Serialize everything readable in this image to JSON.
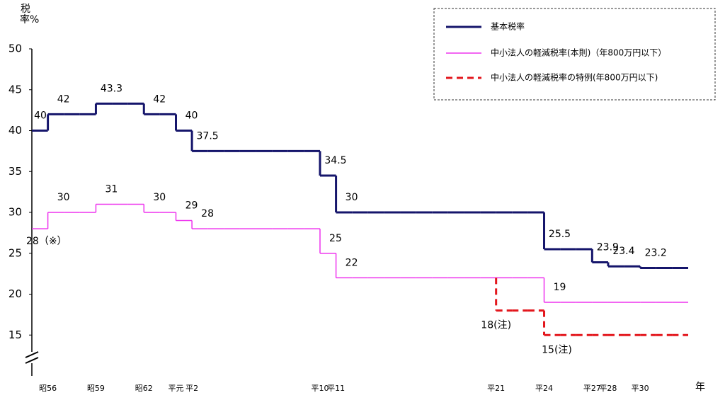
{
  "chart_data": {
    "type": "step",
    "y_label": "税率%",
    "x_label": "年",
    "categories": [
      null,
      "昭56",
      null,
      null,
      "昭59",
      null,
      null,
      "昭62",
      null,
      "平元",
      "平2",
      null,
      null,
      null,
      null,
      null,
      null,
      null,
      "平10",
      "平11",
      null,
      null,
      null,
      null,
      null,
      null,
      null,
      null,
      null,
      "平21",
      null,
      null,
      "平24",
      null,
      null,
      "平27",
      "平28",
      null,
      "平30",
      null,
      null
    ],
    "ylim": [
      10,
      50
    ],
    "yticks": [
      15,
      20,
      25,
      30,
      35,
      40,
      45,
      50
    ],
    "series": [
      {
        "name": "基本税率",
        "color": "#15156b",
        "dashed": false,
        "values": [
          40,
          42,
          42,
          42,
          43.3,
          43.3,
          43.3,
          42,
          42,
          40,
          37.5,
          37.5,
          37.5,
          37.5,
          37.5,
          37.5,
          37.5,
          37.5,
          34.5,
          30,
          30,
          30,
          30,
          30,
          30,
          30,
          30,
          30,
          30,
          30,
          30,
          30,
          25.5,
          25.5,
          25.5,
          23.9,
          23.4,
          23.4,
          23.2,
          23.2,
          23.2
        ]
      },
      {
        "name": "中小法人の軽減税率(本則)（年800万円以下）",
        "color": "#ee33ee",
        "dashed": false,
        "values": [
          28,
          30,
          30,
          30,
          31,
          31,
          31,
          30,
          30,
          29,
          28,
          28,
          28,
          28,
          28,
          28,
          28,
          28,
          25,
          22,
          22,
          22,
          22,
          22,
          22,
          22,
          22,
          22,
          22,
          22,
          22,
          22,
          19,
          19,
          19,
          19,
          19,
          19,
          19,
          19,
          19
        ],
        "value_labels": [
          "28（※）",
          null,
          null,
          null,
          null,
          null,
          null,
          null,
          null,
          null,
          null,
          null,
          null,
          null,
          null,
          null,
          null,
          null,
          null,
          null,
          null,
          null,
          null,
          null,
          null,
          null,
          null,
          null,
          null,
          null,
          null,
          null,
          null,
          null,
          null,
          null,
          null,
          null,
          null,
          null,
          null
        ]
      },
      {
        "name": "中小法人の軽減税率の特例(年800万円以下)",
        "color": "#e3161c",
        "dashed": true,
        "values": [
          null,
          null,
          null,
          null,
          null,
          null,
          null,
          null,
          null,
          null,
          null,
          null,
          null,
          null,
          null,
          null,
          null,
          null,
          null,
          null,
          null,
          null,
          null,
          null,
          null,
          null,
          null,
          null,
          null,
          18,
          18,
          18,
          15,
          15,
          15,
          15,
          15,
          15,
          15,
          15,
          15
        ],
        "value_labels": [
          null,
          null,
          null,
          null,
          null,
          null,
          null,
          null,
          null,
          null,
          null,
          null,
          null,
          null,
          null,
          null,
          null,
          null,
          null,
          null,
          null,
          null,
          null,
          null,
          null,
          null,
          null,
          null,
          null,
          "18(注)",
          null,
          null,
          "15(注)",
          null,
          null,
          null,
          null,
          null,
          null,
          null,
          null
        ]
      }
    ]
  }
}
